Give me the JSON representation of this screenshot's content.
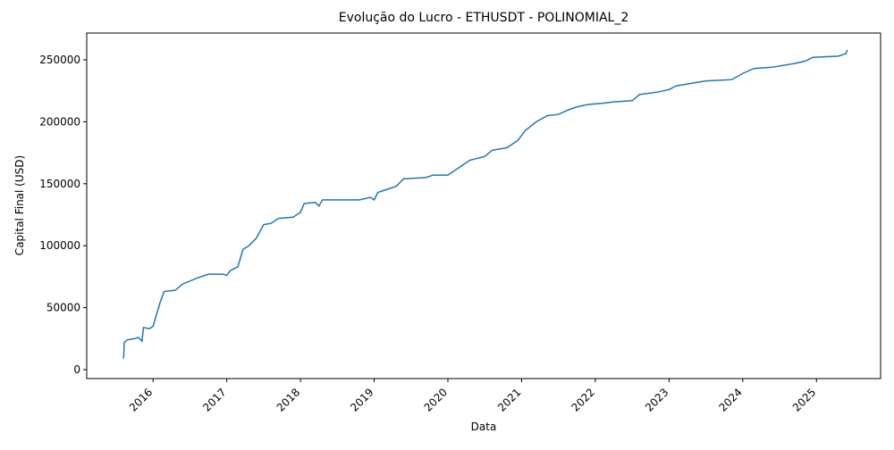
{
  "chart_data": {
    "type": "line",
    "title": "Evolução do Lucro - ETHUSDT - POLINOMIAL_2",
    "x_label": "Data",
    "y_label": "Capital Final (USD)",
    "x": [
      2015.6,
      2015.61,
      2015.65,
      2015.75,
      2015.8,
      2015.85,
      2015.87,
      2015.95,
      2016.0,
      2016.05,
      2016.1,
      2016.15,
      2016.3,
      2016.4,
      2016.6,
      2016.75,
      2016.95,
      2017.0,
      2017.05,
      2017.15,
      2017.22,
      2017.3,
      2017.4,
      2017.5,
      2017.6,
      2017.7,
      2017.9,
      2018.0,
      2018.05,
      2018.2,
      2018.25,
      2018.3,
      2018.8,
      2018.95,
      2019.0,
      2019.05,
      2019.15,
      2019.3,
      2019.4,
      2019.7,
      2019.8,
      2020.0,
      2020.15,
      2020.3,
      2020.5,
      2020.6,
      2020.8,
      2020.95,
      2021.05,
      2021.2,
      2021.35,
      2021.5,
      2021.65,
      2021.75,
      2021.9,
      2022.1,
      2022.25,
      2022.5,
      2022.6,
      2022.85,
      2023.0,
      2023.1,
      2023.3,
      2023.5,
      2023.85,
      2024.0,
      2024.15,
      2024.4,
      2024.7,
      2024.85,
      2024.95,
      2025.3,
      2025.4,
      2025.42
    ],
    "series": [
      {
        "name": "Capital Final",
        "color": "#1f77b4",
        "values": [
          9000,
          22000,
          24000,
          25000,
          26000,
          23000,
          34000,
          33000,
          35000,
          45000,
          55000,
          63000,
          64000,
          69000,
          74000,
          77000,
          77000,
          76000,
          80000,
          83000,
          97000,
          100000,
          106000,
          117000,
          118000,
          122000,
          123000,
          127000,
          134000,
          135000,
          132000,
          137000,
          137000,
          139000,
          137000,
          143000,
          145000,
          148000,
          154000,
          155000,
          157000,
          157000,
          163000,
          169000,
          172000,
          177000,
          179000,
          185000,
          193000,
          200000,
          205000,
          206000,
          210000,
          212000,
          214000,
          215000,
          216000,
          217000,
          222000,
          224000,
          226000,
          229000,
          231000,
          233000,
          234000,
          239000,
          243000,
          244000,
          247000,
          249000,
          252000,
          253000,
          255000,
          258000
        ]
      }
    ],
    "xlim": [
      2015.1,
      2025.87
    ],
    "xticks": [
      2016,
      2017,
      2018,
      2019,
      2020,
      2021,
      2022,
      2023,
      2024,
      2025
    ],
    "ylim": [
      -7200,
      271600
    ],
    "yticks": [
      0,
      50000,
      100000,
      150000,
      200000,
      250000
    ]
  }
}
